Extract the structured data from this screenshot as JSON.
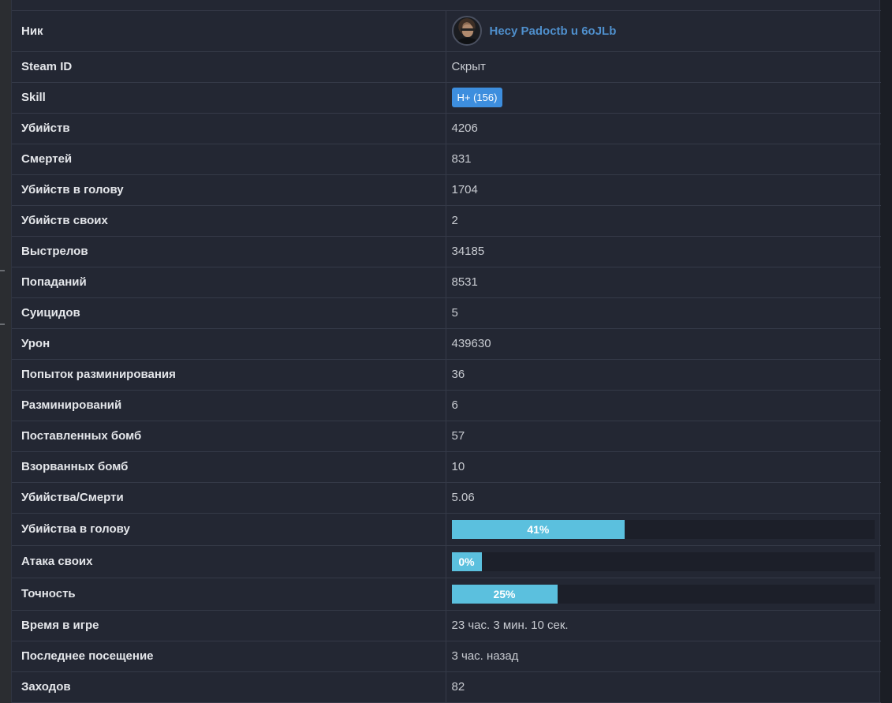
{
  "rows": [
    {
      "key": "nick",
      "label": "Ник",
      "value": "Hecy Padoctb u 6oJLb",
      "type": "nick"
    },
    {
      "key": "steam_id",
      "label": "Steam ID",
      "value": "Скрыт",
      "type": "text"
    },
    {
      "key": "skill",
      "label": "Skill",
      "value": "H+ (156)",
      "type": "badge"
    },
    {
      "key": "kills",
      "label": "Убийств",
      "value": "4206",
      "type": "text"
    },
    {
      "key": "deaths",
      "label": "Смертей",
      "value": "831",
      "type": "text"
    },
    {
      "key": "headshots",
      "label": "Убийств в голову",
      "value": "1704",
      "type": "text"
    },
    {
      "key": "teamkills",
      "label": "Убийств своих",
      "value": "2",
      "type": "text"
    },
    {
      "key": "shots",
      "label": "Выстрелов",
      "value": "34185",
      "type": "text"
    },
    {
      "key": "hits",
      "label": "Попаданий",
      "value": "8531",
      "type": "text"
    },
    {
      "key": "suicides",
      "label": "Суицидов",
      "value": "5",
      "type": "text"
    },
    {
      "key": "damage",
      "label": "Урон",
      "value": "439630",
      "type": "text"
    },
    {
      "key": "defuse_attempts",
      "label": "Попыток разминирования",
      "value": "36",
      "type": "text"
    },
    {
      "key": "defuses",
      "label": "Разминирований",
      "value": "6",
      "type": "text"
    },
    {
      "key": "bombs_planted",
      "label": "Поставленных бомб",
      "value": "57",
      "type": "text"
    },
    {
      "key": "bombs_exploded",
      "label": "Взорванных бомб",
      "value": "10",
      "type": "text"
    },
    {
      "key": "kd",
      "label": "Убийства/Смерти",
      "value": "5.06",
      "type": "text"
    },
    {
      "key": "hs_ratio",
      "label": "Убийства в голову",
      "value": "41%",
      "percent": 41,
      "type": "bar"
    },
    {
      "key": "tk_ratio",
      "label": "Атака своих",
      "value": "0%",
      "percent": 0,
      "type": "bar"
    },
    {
      "key": "accuracy",
      "label": "Точность",
      "value": "25%",
      "percent": 25,
      "type": "bar"
    },
    {
      "key": "playtime",
      "label": "Время в игре",
      "value": "23 час. 3 мин. 10 сек.",
      "type": "text"
    },
    {
      "key": "last_visit",
      "label": "Последнее посещение",
      "value": "3 час. назад",
      "type": "text"
    },
    {
      "key": "visits",
      "label": "Заходов",
      "value": "82",
      "type": "text"
    }
  ],
  "colors": {
    "link": "#4f8fcc",
    "badge": "#3d8ede",
    "bar_fill": "#5bc0de",
    "bar_track": "#1c1f29"
  },
  "icons": {
    "avatar": "player-avatar"
  }
}
